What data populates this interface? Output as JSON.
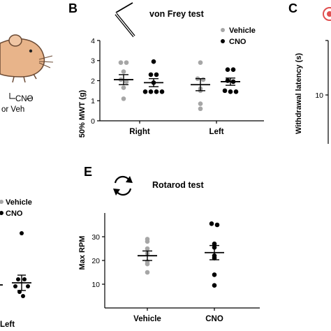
{
  "figure": {
    "panels": {
      "A": {
        "labels": [
          "CNO",
          "or Veh"
        ]
      },
      "B": {
        "letter": "B",
        "title": "von Frey test",
        "legend": [
          "Vehicle",
          "CNO"
        ]
      },
      "C": {
        "letter": "C",
        "ylabel": "Withdrawal latency (s)",
        "tick": "10"
      },
      "D": {
        "legend": [
          "Vehicle",
          "CNO"
        ],
        "category": "Left"
      },
      "E": {
        "letter": "E",
        "title": "Rotarod test"
      }
    },
    "colors": {
      "vehicle": "#a6a6a6",
      "cno": "#000000",
      "mouse": "#e8b48a",
      "target": "#e05050"
    }
  },
  "chart_data": [
    {
      "id": "B",
      "type": "scatter",
      "title": "von Frey test",
      "xlabel": "",
      "ylabel": "50% MWT (g)",
      "ylim": [
        0,
        4
      ],
      "yticks": [
        "0",
        "1",
        "2",
        "3",
        "4"
      ],
      "categories": [
        "Right",
        "Left"
      ],
      "grid": false,
      "legend_position": "top-right",
      "series": [
        {
          "name": "Vehicle",
          "group": "Right",
          "values": [
            2.9,
            2.9,
            2.45,
            2.05,
            1.95,
            1.65,
            1.1
          ],
          "mean": 2.05,
          "sem": 0.25
        },
        {
          "name": "CNO",
          "group": "Right",
          "values": [
            2.95,
            2.3,
            2.3,
            1.9,
            1.45,
            1.45,
            1.45,
            1.45
          ],
          "mean": 1.9,
          "sem": 0.2
        },
        {
          "name": "Vehicle",
          "group": "Left",
          "values": [
            2.9,
            2.1,
            2.05,
            1.6,
            1.5,
            0.85,
            0.6
          ],
          "mean": 1.8,
          "sem": 0.3
        },
        {
          "name": "CNO",
          "group": "Left",
          "values": [
            2.55,
            2.55,
            2.0,
            1.95,
            1.5,
            1.45,
            1.45
          ],
          "mean": 1.95,
          "sem": 0.18
        }
      ]
    },
    {
      "id": "E",
      "type": "scatter",
      "title": "Rotarod test",
      "xlabel": "",
      "ylabel": "Max RPM",
      "ylim": [
        0,
        40
      ],
      "yticks": [
        "10",
        "20",
        "30"
      ],
      "categories": [
        "Vehicle",
        "CNO"
      ],
      "grid": false,
      "series": [
        {
          "name": "Vehicle",
          "group": "Vehicle",
          "values": [
            29,
            28,
            25,
            23,
            19.5,
            18.5,
            15
          ],
          "mean": 22,
          "sem": 2
        },
        {
          "name": "CNO",
          "group": "CNO",
          "values": [
            35.5,
            35,
            27,
            25.5,
            22,
            21,
            14,
            9.5
          ],
          "mean": 23.3,
          "sem": 3
        }
      ]
    }
  ]
}
